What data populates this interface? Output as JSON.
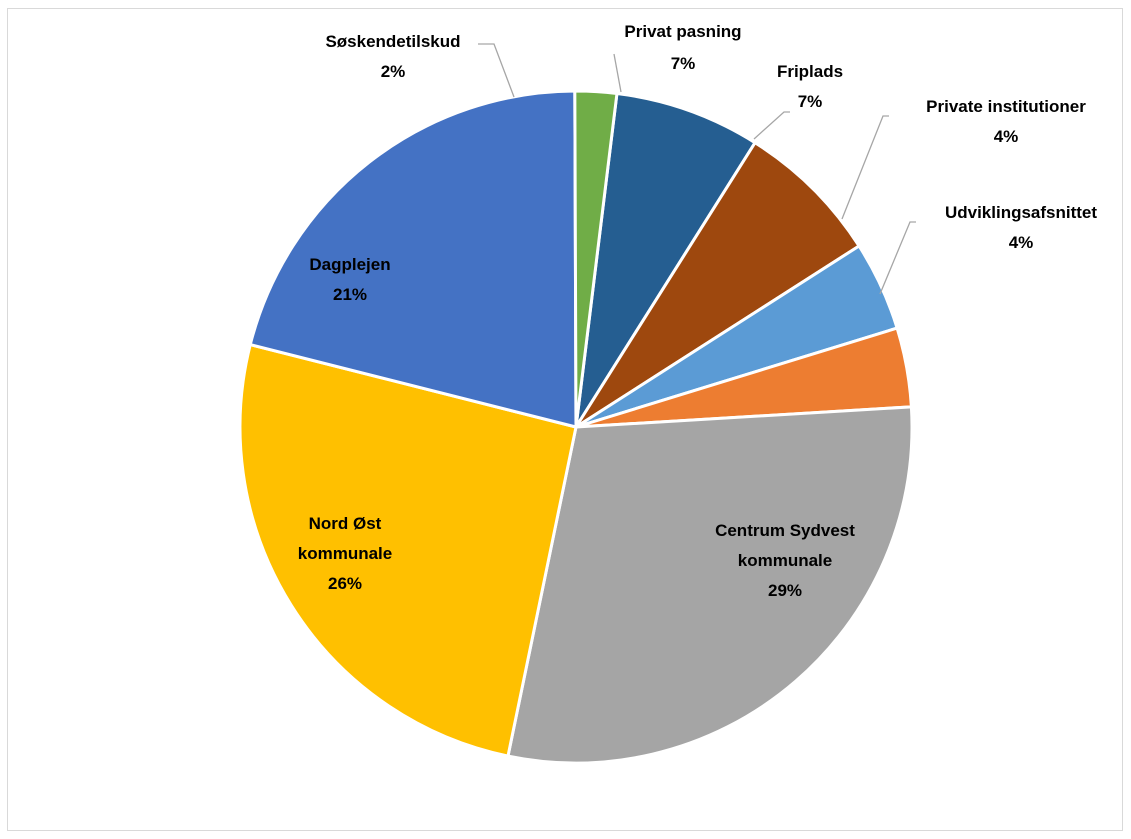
{
  "chart_data": {
    "type": "pie",
    "title": "",
    "legend": "none",
    "slices": [
      {
        "name": "Privat pasning",
        "percent_label": "7%",
        "value": 7,
        "color": "#255e91"
      },
      {
        "name": "Friplads",
        "percent_label": "7%",
        "value": 7,
        "color": "#9e480e"
      },
      {
        "name": "Private institutioner",
        "percent_label": "4%",
        "value": 4.3,
        "color": "#5b9bd5"
      },
      {
        "name": "Udviklingsafsnittet",
        "percent_label": "4%",
        "value": 3.8,
        "color": "#ed7d31"
      },
      {
        "name": "Centrum Sydvest kommunale",
        "percent_label": "29%",
        "value": 29.2,
        "color": "#a5a5a5"
      },
      {
        "name": "Nord Øst kommunale",
        "percent_label": "26%",
        "value": 25.7,
        "color": "#ffc000"
      },
      {
        "name": "Dagplejen",
        "percent_label": "21%",
        "value": 21,
        "color": "#4472c4"
      },
      {
        "name": "Søskendetilskud",
        "percent_label": "2%",
        "value": 2,
        "color": "#70ad47"
      }
    ]
  }
}
